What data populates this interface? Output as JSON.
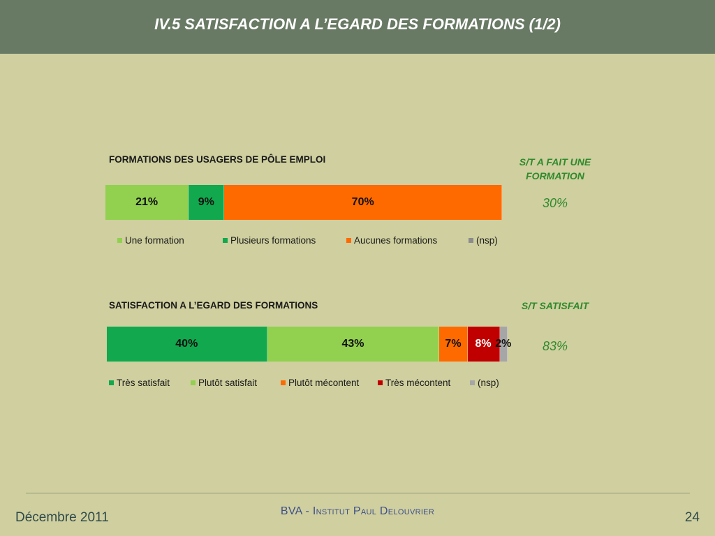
{
  "header": {
    "title": "IV.5 SATISFACTION A L’EGARD DES FORMATIONS (1/2)"
  },
  "chart_data": [
    {
      "type": "bar",
      "orientation": "horizontal-stacked-100",
      "title": "FORMATIONS DES USAGERS DE PÔLE EMPLOI",
      "series": [
        {
          "name": "Une formation",
          "value": 21,
          "label": "21%",
          "color": "#92d050"
        },
        {
          "name": "Plusieurs formations",
          "value": 9,
          "label": "9%",
          "color": "#11a84e"
        },
        {
          "name": "Aucunes formations",
          "value": 70,
          "label": "70%",
          "color": "#ff6a00"
        },
        {
          "name": "(nsp)",
          "value": 0,
          "label": "",
          "color": "#8c8c8c"
        }
      ],
      "summary": {
        "label": "S/T A FAIT UNE FORMATION",
        "value": "30%"
      },
      "legend_position": "bottom"
    },
    {
      "type": "bar",
      "orientation": "horizontal-stacked-100",
      "title": "SATISFACTION A L’EGARD DES FORMATIONS",
      "series": [
        {
          "name": "Très satisfait",
          "value": 40,
          "label": "40%",
          "color": "#11a84e",
          "label_color": "#111111"
        },
        {
          "name": "Plutôt satisfait",
          "value": 43,
          "label": "43%",
          "color": "#92d050",
          "label_color": "#111111"
        },
        {
          "name": "Plutôt mécontent",
          "value": 7,
          "label": "7%",
          "color": "#ff6a00",
          "label_color": "#111111"
        },
        {
          "name": "Très mécontent",
          "value": 8,
          "label": "8%",
          "color": "#c00000",
          "label_color": "#ffffff"
        },
        {
          "name": "(nsp)",
          "value": 2,
          "label": "2%",
          "color": "#a6a6a6",
          "label_color": "#111111"
        }
      ],
      "summary": {
        "label": "S/T SATISFAIT",
        "value": "83%"
      },
      "legend_position": "bottom"
    }
  ],
  "footer": {
    "date": "Décembre 2011",
    "source": "BVA - Institut Paul Delouvrier",
    "page": "24"
  }
}
